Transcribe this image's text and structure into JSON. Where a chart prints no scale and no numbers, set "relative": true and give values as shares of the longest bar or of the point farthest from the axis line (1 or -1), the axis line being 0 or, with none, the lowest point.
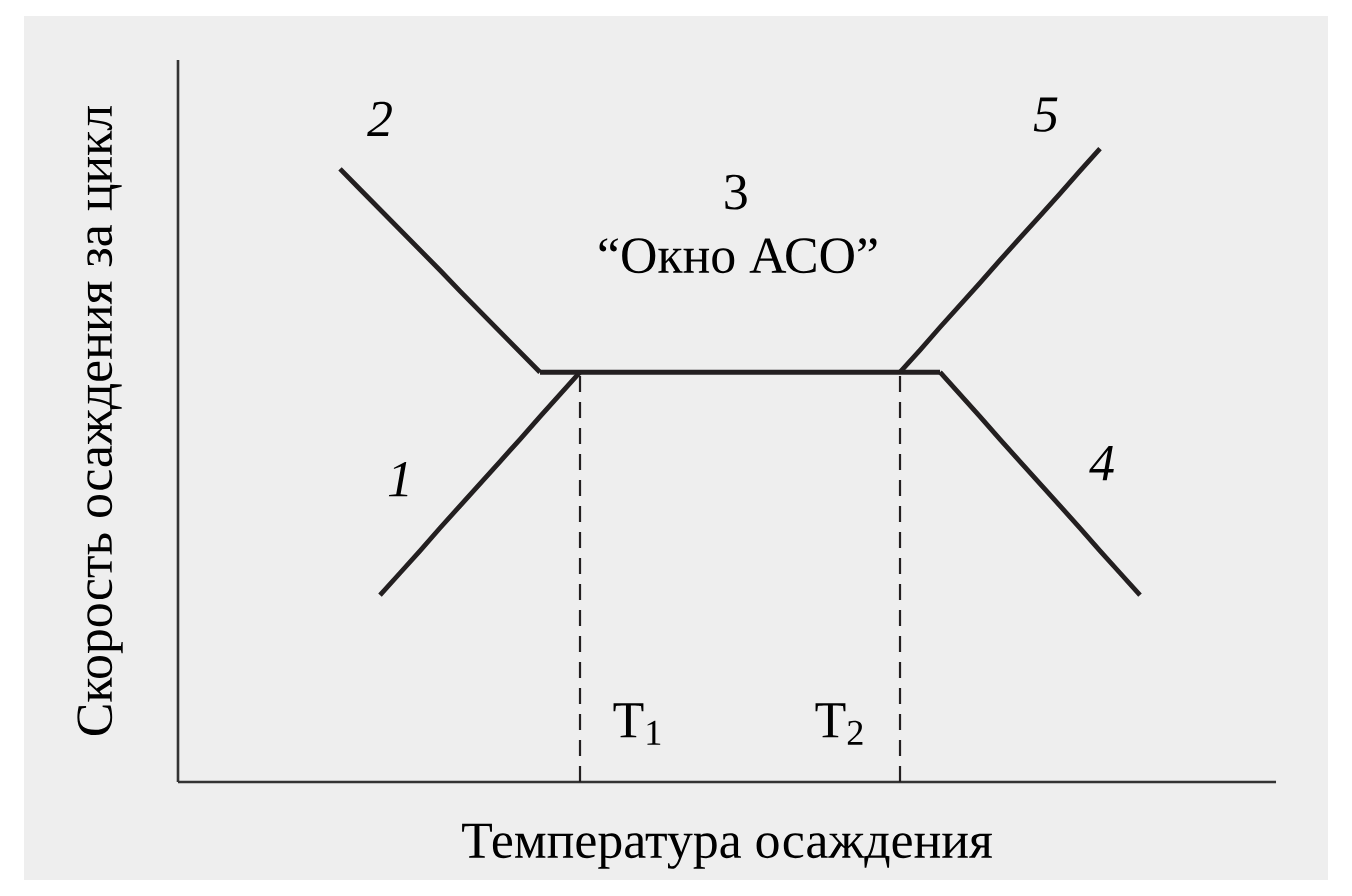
{
  "chart_data": {
    "type": "line",
    "relative": true,
    "xlabel": "Температура осаждения",
    "ylabel": "Скорость осаждения за цикл",
    "marker": "none",
    "categories": [
      null,
      null,
      null,
      null,
      null,
      null,
      null,
      null,
      null,
      null,
      null,
      null,
      null,
      null,
      null,
      null,
      null,
      null,
      null,
      null,
      null,
      null,
      null,
      null,
      null,
      null,
      null,
      null,
      null,
      null,
      null,
      null,
      null,
      null,
      null,
      null,
      null,
      null,
      null,
      null,
      null
    ],
    "series": [
      {
        "name": "1",
        "color": "#231f20",
        "values": [
          null,
          null,
          0.295,
          0.33,
          0.365,
          0.401,
          0.436,
          0.471,
          0.506,
          0.541,
          0.577,
          0.612,
          0.647,
          null,
          null,
          null,
          null,
          null,
          null,
          null,
          null,
          null,
          null,
          null,
          null,
          null,
          null,
          null,
          null,
          null,
          null,
          null,
          null,
          null,
          null,
          null,
          null,
          null,
          null,
          null,
          null
        ]
      },
      {
        "name": "2",
        "color": "#231f20",
        "values": [
          0.968,
          0.936,
          0.904,
          0.872,
          0.84,
          0.808,
          0.775,
          0.743,
          0.711,
          0.679,
          0.647,
          null,
          null,
          null,
          null,
          null,
          null,
          null,
          null,
          null,
          null,
          null,
          null,
          null,
          null,
          null,
          null,
          null,
          null,
          null,
          null,
          null,
          null,
          null,
          null,
          null,
          null,
          null,
          null,
          null,
          null
        ]
      },
      {
        "color": "#231f20",
        "values": [
          null,
          null,
          null,
          null,
          null,
          null,
          null,
          null,
          null,
          null,
          0.647,
          0.647,
          0.647,
          0.647,
          0.647,
          0.647,
          0.647,
          0.647,
          0.647,
          0.647,
          0.647,
          0.647,
          0.647,
          0.647,
          0.647,
          0.647,
          0.647,
          0.647,
          0.647,
          0.647,
          0.647,
          null,
          null,
          null,
          null,
          null,
          null,
          null,
          null,
          null,
          null
        ]
      },
      {
        "name": "4",
        "color": "#231f20",
        "values": [
          null,
          null,
          null,
          null,
          null,
          null,
          null,
          null,
          null,
          null,
          null,
          null,
          null,
          null,
          null,
          null,
          null,
          null,
          null,
          null,
          null,
          null,
          null,
          null,
          null,
          null,
          null,
          null,
          null,
          null,
          0.647,
          0.612,
          0.577,
          0.541,
          0.506,
          0.471,
          0.436,
          0.401,
          0.365,
          0.33,
          0.295
        ]
      },
      {
        "name": "5",
        "color": "#231f20",
        "values": [
          null,
          null,
          null,
          null,
          null,
          null,
          null,
          null,
          null,
          null,
          null,
          null,
          null,
          null,
          null,
          null,
          null,
          null,
          null,
          null,
          null,
          null,
          null,
          null,
          null,
          null,
          null,
          null,
          0.647,
          0.682,
          0.718,
          0.753,
          0.788,
          0.824,
          0.859,
          0.894,
          0.929,
          0.965,
          1,
          null,
          null
        ]
      }
    ],
    "annotations": [
      "3",
      "“Окно АСО”",
      "T$_{1}$",
      "T$_{2}$"
    ]
  }
}
